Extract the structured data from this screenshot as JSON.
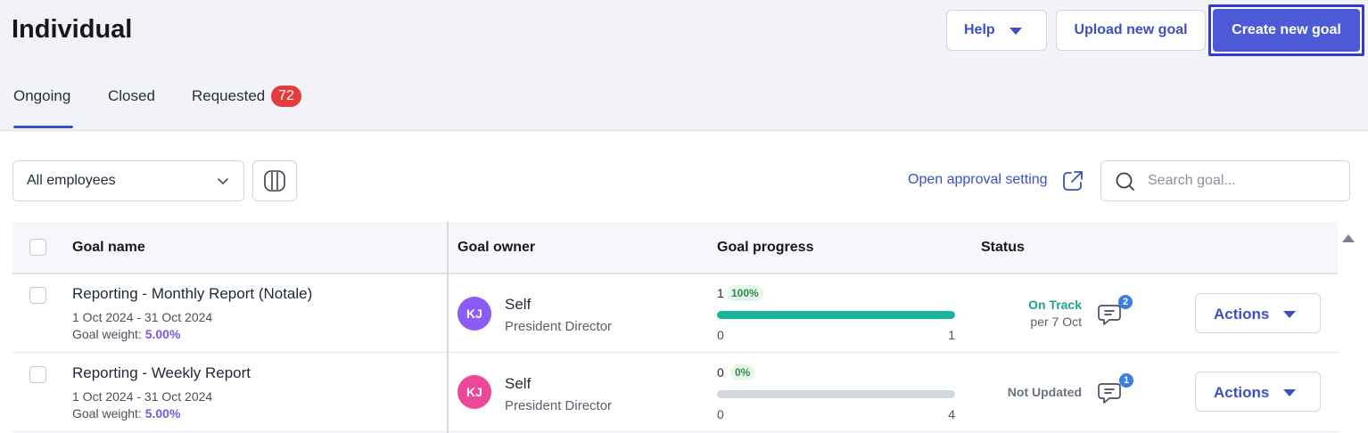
{
  "header": {
    "title": "Individual",
    "help_label": "Help",
    "upload_label": "Upload new goal",
    "create_label": "Create new goal"
  },
  "tabs": [
    {
      "label": "Ongoing",
      "active": true
    },
    {
      "label": "Closed"
    },
    {
      "label": "Requested",
      "badge": "72"
    }
  ],
  "filters": {
    "employee_select": "All employees",
    "approval_link": "Open approval setting",
    "search_placeholder": "Search goal..."
  },
  "table": {
    "columns": [
      "Goal name",
      "Goal owner",
      "Goal progress",
      "Status"
    ],
    "rows": [
      {
        "name": "Reporting - Monthly Report (Notale)",
        "dates": "1 Oct 2024 - 31 Oct 2024",
        "weight_label": "Goal weight:",
        "weight": "5.00%",
        "owner_initials": "KJ",
        "owner_name": "Self",
        "owner_role": "President Director",
        "avatar_color": "#8b5cf6",
        "progress_value": "1",
        "progress_pct": "100%",
        "progress_fraction": 1.0,
        "progress_min": "0",
        "progress_max": "1",
        "status": "On Track",
        "status_color": "#1aa68a",
        "status_sub": "per 7 Oct",
        "comment_count": "2",
        "actions_label": "Actions"
      },
      {
        "name": "Reporting - Weekly Report",
        "dates": "1 Oct 2024 - 31 Oct 2024",
        "weight_label": "Goal weight:",
        "weight": "5.00%",
        "owner_initials": "KJ",
        "owner_name": "Self",
        "owner_role": "President Director",
        "avatar_color": "#ec4899",
        "progress_value": "0",
        "progress_pct": "0%",
        "progress_fraction": 0.0,
        "progress_min": "0",
        "progress_max": "4",
        "status": "Not Updated",
        "status_color": "#6b7280",
        "status_sub": "",
        "comment_count": "1",
        "actions_label": "Actions"
      }
    ]
  },
  "colors": {
    "accent": "#3d4fc4",
    "primary_button": "#4d5ad8",
    "badge_red": "#e33c3c",
    "progress_fill": "#18b59a"
  },
  "icons": [
    "chevron-down-icon",
    "columns-icon",
    "external-link-icon",
    "search-icon",
    "comment-icon",
    "caret-down-icon",
    "scroll-up-icon"
  ]
}
